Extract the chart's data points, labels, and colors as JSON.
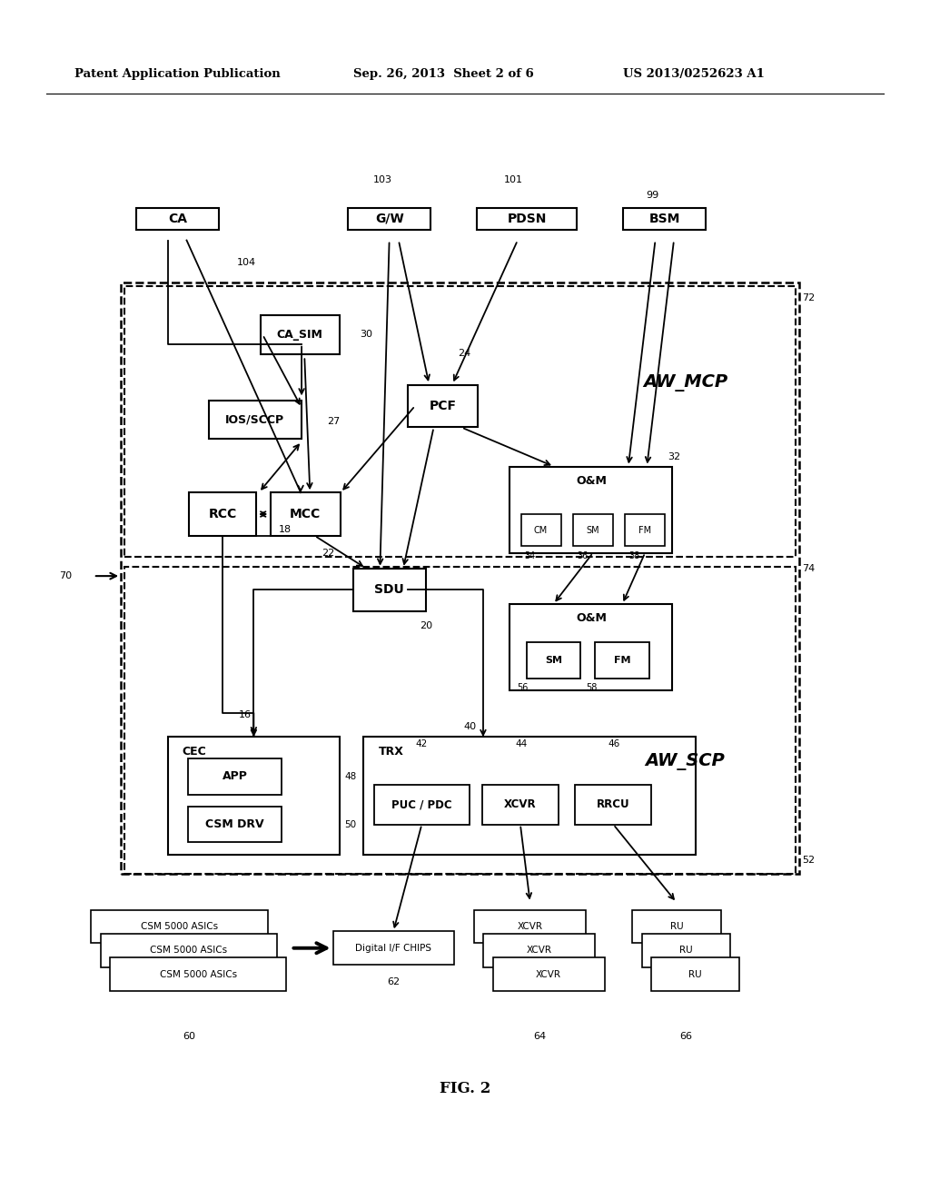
{
  "title_left": "Patent Application Publication",
  "title_mid": "Sep. 26, 2013  Sheet 2 of 6",
  "title_right": "US 2013/0252623 A1",
  "fig_label": "FIG. 2",
  "bg_color": "#ffffff"
}
